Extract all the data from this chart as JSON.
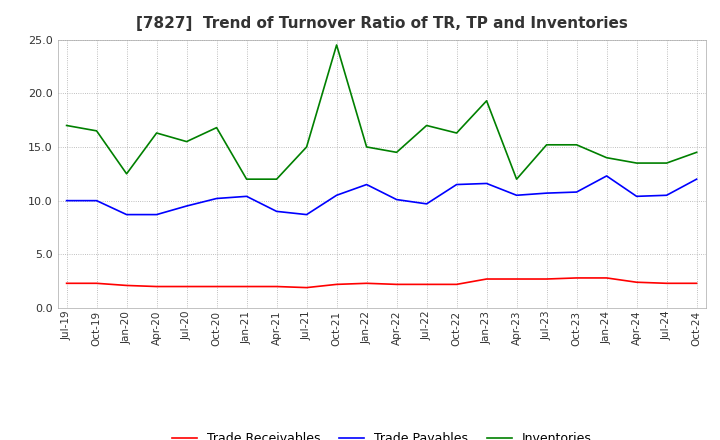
{
  "title": "[7827]  Trend of Turnover Ratio of TR, TP and Inventories",
  "x_labels": [
    "Jul-19",
    "Oct-19",
    "Jan-20",
    "Apr-20",
    "Jul-20",
    "Oct-20",
    "Jan-21",
    "Apr-21",
    "Jul-21",
    "Oct-21",
    "Jan-22",
    "Apr-22",
    "Jul-22",
    "Oct-22",
    "Jan-23",
    "Apr-23",
    "Jul-23",
    "Oct-23",
    "Jan-24",
    "Apr-24",
    "Jul-24",
    "Oct-24"
  ],
  "trade_receivables": [
    2.3,
    2.3,
    2.1,
    2.0,
    2.0,
    2.0,
    2.0,
    2.0,
    1.9,
    2.2,
    2.3,
    2.2,
    2.2,
    2.2,
    2.7,
    2.7,
    2.7,
    2.8,
    2.8,
    2.4,
    2.3,
    2.3
  ],
  "trade_payables": [
    10.0,
    10.0,
    8.7,
    8.7,
    9.5,
    10.2,
    10.4,
    9.0,
    8.7,
    10.5,
    11.5,
    10.1,
    9.7,
    11.5,
    11.6,
    10.5,
    10.7,
    10.8,
    12.3,
    10.4,
    10.5,
    12.0
  ],
  "inventories": [
    17.0,
    16.5,
    12.5,
    16.3,
    15.5,
    16.8,
    12.0,
    12.0,
    15.0,
    24.5,
    15.0,
    14.5,
    17.0,
    16.3,
    19.3,
    12.0,
    15.2,
    15.2,
    14.0,
    13.5,
    13.5,
    14.5
  ],
  "ylim": [
    0,
    25.0
  ],
  "yticks": [
    0.0,
    5.0,
    10.0,
    15.0,
    20.0,
    25.0
  ],
  "line_color_tr": "#ff0000",
  "line_color_tp": "#0000ff",
  "line_color_inv": "#008000",
  "bg_color": "#ffffff",
  "plot_bg_color": "#ffffff",
  "grid_color": "#aaaaaa",
  "title_fontsize": 11,
  "title_color": "#333333",
  "legend_labels": [
    "Trade Receivables",
    "Trade Payables",
    "Inventories"
  ]
}
